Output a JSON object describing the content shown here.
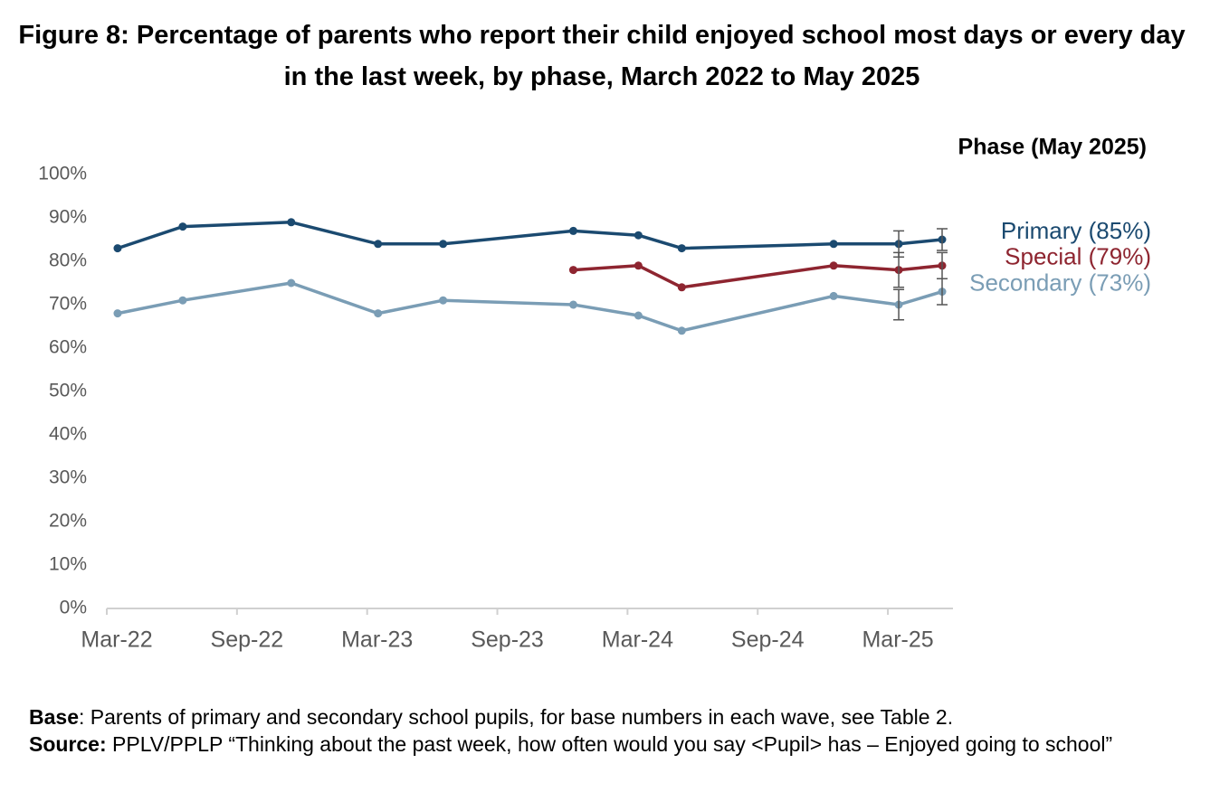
{
  "chart_data": {
    "type": "line",
    "title": "Figure 8: Percentage of parents who report their child enjoyed school most days or every day in the last week, by phase, March 2022 to May 2025",
    "legend_title": "Phase (May 2025)",
    "x": [
      "2022-03",
      "2022-06",
      "2022-11",
      "2023-03",
      "2023-06",
      "2023-12",
      "2024-03",
      "2024-05",
      "2024-12",
      "2025-03",
      "2025-05"
    ],
    "xlim": [
      "2022-03",
      "2025-06"
    ],
    "xticks": [
      {
        "value": "2022-03",
        "label": "Mar-22"
      },
      {
        "value": "2022-09",
        "label": "Sep-22"
      },
      {
        "value": "2023-03",
        "label": "Mar-23"
      },
      {
        "value": "2023-09",
        "label": "Sep-23"
      },
      {
        "value": "2024-03",
        "label": "Mar-24"
      },
      {
        "value": "2024-09",
        "label": "Sep-24"
      },
      {
        "value": "2025-03",
        "label": "Mar-25"
      }
    ],
    "ylim": [
      0,
      100
    ],
    "yticks": [
      {
        "value": 0,
        "label": "0%"
      },
      {
        "value": 10,
        "label": "10%"
      },
      {
        "value": 20,
        "label": "20%"
      },
      {
        "value": 30,
        "label": "30%"
      },
      {
        "value": 40,
        "label": "40%"
      },
      {
        "value": 50,
        "label": "50%"
      },
      {
        "value": 60,
        "label": "60%"
      },
      {
        "value": 70,
        "label": "70%"
      },
      {
        "value": 80,
        "label": "80%"
      },
      {
        "value": 90,
        "label": "90%"
      },
      {
        "value": 100,
        "label": "100%"
      }
    ],
    "series": [
      {
        "name": "Primary (85%)",
        "color": "#1b4a70",
        "values": [
          83,
          88,
          89,
          84,
          84,
          87,
          86,
          83,
          84,
          84,
          85
        ],
        "errors": [
          null,
          null,
          null,
          null,
          null,
          null,
          null,
          null,
          null,
          3,
          2.5
        ]
      },
      {
        "name": "Special (79%)",
        "color": "#8e2530",
        "values": [
          null,
          null,
          null,
          null,
          null,
          78,
          79,
          74,
          79,
          78,
          79
        ],
        "errors": [
          null,
          null,
          null,
          null,
          null,
          null,
          null,
          null,
          null,
          4,
          3
        ]
      },
      {
        "name": "Secondary (73%)",
        "color": "#7a9db5",
        "values": [
          68,
          71,
          75,
          68,
          71,
          70,
          67.5,
          64,
          72,
          70,
          73
        ],
        "errors": [
          null,
          null,
          null,
          null,
          null,
          null,
          null,
          null,
          null,
          3.5,
          3
        ]
      }
    ],
    "notes": [
      {
        "label": "Base",
        "text": ": Parents of primary and secondary school pupils, for base numbers in each wave, see Table 2."
      },
      {
        "label": "Source:",
        "text": " PPLV/PPLP “Thinking about the past week, how often would you say <Pupil> has – Enjoyed going to school”"
      }
    ]
  }
}
